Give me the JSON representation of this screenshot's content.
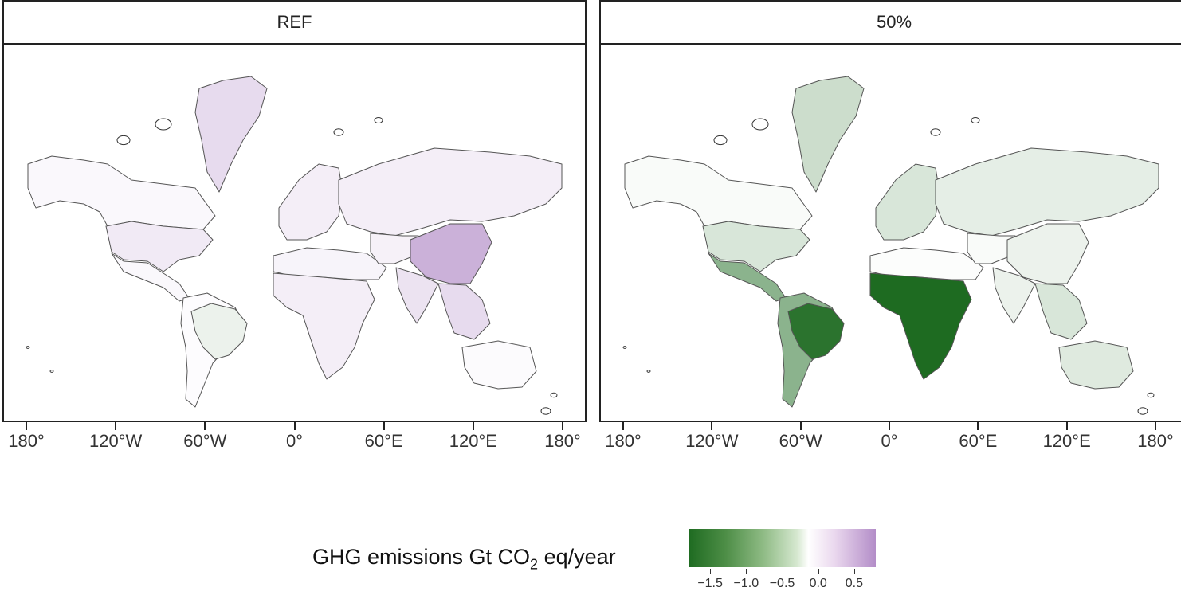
{
  "panels": [
    {
      "title": "REF"
    },
    {
      "title": "50%"
    }
  ],
  "axis": {
    "x_ticks": [
      "180°",
      "120°W",
      "60°W",
      "0°",
      "60°E",
      "120°E",
      "180°"
    ]
  },
  "legend": {
    "title_pre": "GHG emissions Gt CO",
    "title_sub": "2",
    "title_post": " eq/year",
    "ticks": [
      "−1.5",
      "−1.0",
      "−0.5",
      "0.0",
      "0.5"
    ],
    "range": [
      -1.8,
      0.8
    ],
    "low_color": "#1e6b21",
    "mid_color": "#ffffff",
    "high_color": "#b38dc8"
  },
  "regions": {
    "ref": {
      "north_america_ca": 0.05,
      "usa": 0.15,
      "mexico_ca": 0.05,
      "greenland": 0.25,
      "south_america": 0.02,
      "brazil": -0.15,
      "europe": 0.12,
      "russia": 0.12,
      "mena": 0.08,
      "africa": 0.12,
      "china": 0.55,
      "india": 0.2,
      "central_asia": 0.1,
      "se_asia": 0.25,
      "oceania": 0.03
    },
    "p50": {
      "north_america_ca": -0.05,
      "usa": -0.3,
      "mexico_ca": -0.9,
      "greenland": -0.4,
      "south_america": -0.9,
      "brazil": -1.65,
      "europe": -0.3,
      "russia": -0.2,
      "mena": -0.02,
      "africa": -1.75,
      "china": -0.15,
      "india": -0.15,
      "central_asia": -0.05,
      "se_asia": -0.3,
      "oceania": -0.25
    }
  }
}
